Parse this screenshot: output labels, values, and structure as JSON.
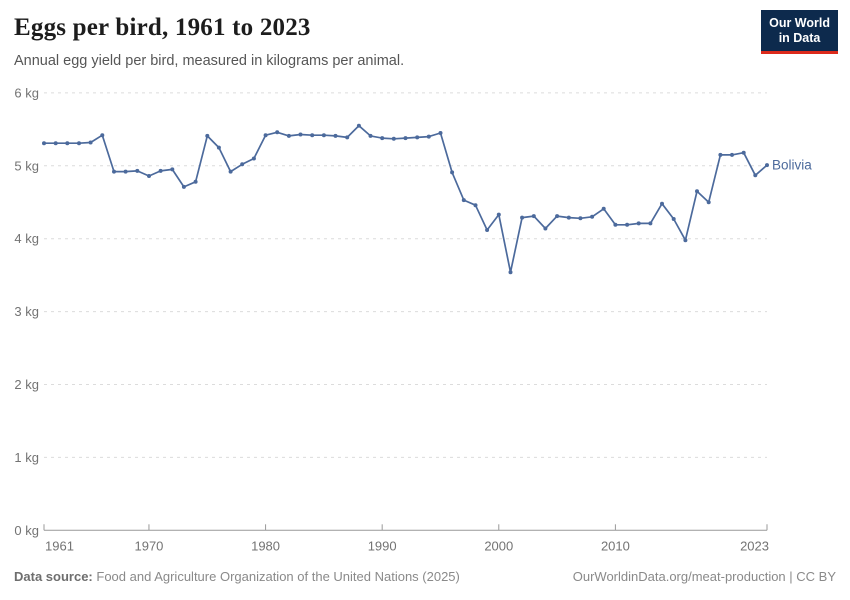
{
  "header": {
    "title": "Eggs per bird, 1961 to 2023",
    "subtitle": "Annual egg yield per bird, measured in kilograms per animal.",
    "logo": {
      "line1": "Our World",
      "line2": "in Data",
      "bg_color": "#0d2a4d",
      "accent_color": "#dc2a1b"
    }
  },
  "chart_data": {
    "type": "line",
    "title": "Eggs per bird, 1961 to 2023",
    "ylabel": "kilograms per animal",
    "xlabel": "",
    "xlim": [
      1961,
      2023
    ],
    "ylim": [
      0,
      6
    ],
    "grid": "horizontal-dashed",
    "legend_position": "end-of-line-label",
    "x_ticks": [
      1961,
      1970,
      1980,
      1990,
      2000,
      2010,
      2023
    ],
    "y_ticks": [
      {
        "value": 0,
        "label": "0 kg"
      },
      {
        "value": 1,
        "label": "1 kg"
      },
      {
        "value": 2,
        "label": "2 kg"
      },
      {
        "value": 3,
        "label": "3 kg"
      },
      {
        "value": 4,
        "label": "4 kg"
      },
      {
        "value": 5,
        "label": "5 kg"
      },
      {
        "value": 6,
        "label": "6 kg"
      }
    ],
    "grid_color": "#dcdcdc",
    "axis_color": "#999999",
    "series": [
      {
        "name": "Bolivia",
        "color": "#4C6A9C",
        "x": [
          1961,
          1962,
          1963,
          1964,
          1965,
          1966,
          1967,
          1968,
          1969,
          1970,
          1971,
          1972,
          1973,
          1974,
          1975,
          1976,
          1977,
          1978,
          1979,
          1980,
          1981,
          1982,
          1983,
          1984,
          1985,
          1986,
          1987,
          1988,
          1989,
          1990,
          1991,
          1992,
          1993,
          1994,
          1995,
          1996,
          1997,
          1998,
          1999,
          2000,
          2001,
          2002,
          2003,
          2004,
          2005,
          2006,
          2007,
          2008,
          2009,
          2010,
          2011,
          2012,
          2013,
          2014,
          2015,
          2016,
          2017,
          2018,
          2019,
          2020,
          2021,
          2022,
          2023
        ],
        "values": [
          5.31,
          5.31,
          5.31,
          5.31,
          5.32,
          5.42,
          4.92,
          4.92,
          4.93,
          4.86,
          4.93,
          4.95,
          4.71,
          4.78,
          5.41,
          5.25,
          4.92,
          5.02,
          5.1,
          5.42,
          5.46,
          5.41,
          5.43,
          5.42,
          5.42,
          5.41,
          5.39,
          5.55,
          5.41,
          5.38,
          5.37,
          5.38,
          5.39,
          5.4,
          5.45,
          4.91,
          4.53,
          4.46,
          4.12,
          4.33,
          3.54,
          4.29,
          4.31,
          4.14,
          4.31,
          4.29,
          4.28,
          4.3,
          4.41,
          4.19,
          4.19,
          4.21,
          4.21,
          4.48,
          4.27,
          3.98,
          4.65,
          4.5,
          5.15,
          5.15,
          5.18,
          4.87,
          5.01
        ]
      }
    ]
  },
  "footer": {
    "source_label": "Data source:",
    "source_text": "Food and Agriculture Organization of the United Nations (2025)",
    "link_text": "OurWorldinData.org/meat-production | CC BY"
  }
}
